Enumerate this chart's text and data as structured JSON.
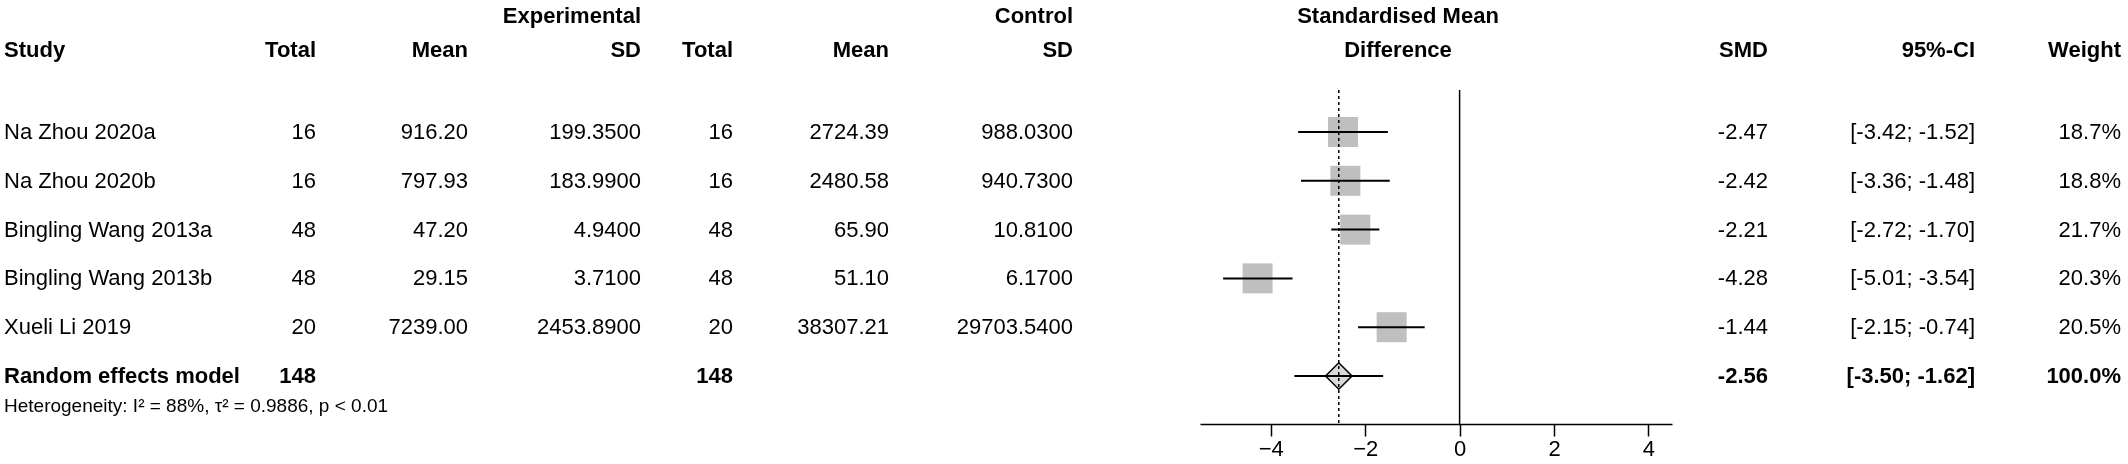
{
  "chart_data": [
    {
      "type": "other",
      "ylabel": "Study",
      "categories": [
        "Total",
        "Mean",
        "SD",
        "Total",
        "Mean",
        "SD"
      ],
      "annotations": [
        "Experimental",
        "Control",
        "Heterogeneity: I² = 88%, τ² = 0.9886, p < 0.01"
      ],
      "y_categories": [
        "Na Zhou 2020a",
        "Na Zhou 2020b",
        "Bingling Wang 2013a",
        "Bingling Wang 2013b",
        "Xueli Li 2019",
        "Random effects model"
      ],
      "cell_labels": [
        [
          "16",
          "916.20",
          "199.3500",
          "16",
          "2724.39",
          "988.0300"
        ],
        [
          "16",
          "797.93",
          "183.9900",
          "16",
          "2480.58",
          "940.7300"
        ],
        [
          "48",
          "47.20",
          "4.9400",
          "48",
          "65.90",
          "10.8100"
        ],
        [
          "48",
          "29.15",
          "3.7100",
          "48",
          "51.10",
          "6.1700"
        ],
        [
          "20",
          "7239.00",
          "2453.8900",
          "20",
          "38307.21",
          "29703.5400"
        ],
        [
          "148",
          null,
          null,
          "148",
          null,
          null
        ]
      ]
    },
    {
      "type": "scatter",
      "title": "Standardised Mean Difference",
      "orientation": "horizontal",
      "categories": [
        null,
        null,
        null,
        null,
        null,
        null
      ],
      "series": [
        {
          "marker": "square",
          "color": "#bfbfbf",
          "values": [
            -2.47,
            -2.42,
            -2.21,
            -4.28,
            -1.44,
            null
          ],
          "errors": [
            [
              -3.42,
              -1.52
            ],
            [
              -3.36,
              -1.48
            ],
            [
              -2.72,
              -1.7
            ],
            [
              -5.01,
              -3.54
            ],
            [
              -2.15,
              -0.74
            ],
            null
          ]
        },
        {
          "marker": "diamond",
          "color": "#d9d9d9",
          "values": [
            null,
            null,
            null,
            null,
            null,
            -2.56
          ],
          "errors": [
            null,
            null,
            null,
            null,
            null,
            [
              -3.5,
              -1.62
            ]
          ]
        }
      ],
      "xlim": [
        -5.5,
        4.5
      ],
      "xticks": [
        -4,
        -2,
        0,
        2,
        4
      ],
      "grid": false,
      "tick_labels": "x",
      "ref_lines": [
        {
          "axis": "x",
          "value": 0,
          "line_style": "solid",
          "color": "#000000"
        },
        {
          "axis": "x",
          "value": -2.56,
          "line_style": "dotted",
          "color": "#000000"
        }
      ]
    },
    {
      "type": "other",
      "categories": [
        "SMD",
        "95%-CI",
        "Weight"
      ],
      "cell_labels": [
        [
          "-2.47",
          "[-3.42; -1.52]",
          "18.7%"
        ],
        [
          "-2.42",
          "[-3.36; -1.48]",
          "18.8%"
        ],
        [
          "-2.21",
          "[-2.72; -1.70]",
          "21.7%"
        ],
        [
          "-4.28",
          "[-5.01; -3.54]",
          "20.3%"
        ],
        [
          "-1.44",
          "[-2.15; -0.74]",
          "20.5%"
        ],
        [
          "-2.56",
          "[-3.50; -1.62]",
          "100.0%"
        ]
      ]
    }
  ]
}
